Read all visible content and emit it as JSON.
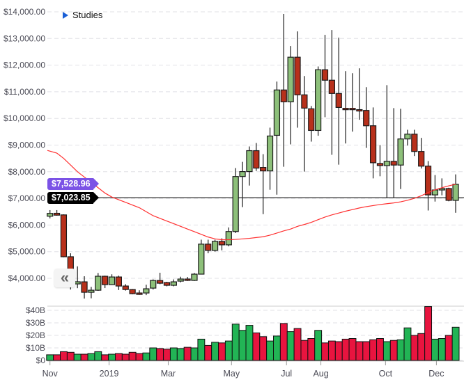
{
  "header": {
    "studies_label": "Studies"
  },
  "controls": {
    "collapse_icon": "double-chevron-left-icon"
  },
  "colors": {
    "up_candle": "#8dc07a",
    "down_candle": "#b8301b",
    "up_volume": "#22b455",
    "down_volume": "#e8143f",
    "moving_average": "#ff3030",
    "last_price_tag": "#7b52e6",
    "crosshair_tag": "#000000"
  },
  "price_tags": {
    "moving_average": "$7,528.96",
    "crosshair": "$7,023.85"
  },
  "chart_data": [
    {
      "type": "candlestick",
      "ylim": [
        4000,
        14000
      ],
      "ytick_labels": [
        "$14,000.00",
        "$13,000.00",
        "$12,000.00",
        "$11,000.00",
        "$10,000.00",
        "$9,000.00",
        "$8,000.00",
        "$7,000.00",
        "$6,000.00",
        "$5,000.00",
        "$4,000.00"
      ],
      "yticks": [
        14000,
        13000,
        12000,
        11000,
        10000,
        9000,
        8000,
        7000,
        6000,
        5000,
        4000
      ],
      "grid": true,
      "crosshair_value": 7023.85,
      "ohlc": [
        [
          6330,
          6560,
          6250,
          6435
        ],
        [
          6440,
          6560,
          6350,
          6370
        ],
        [
          6380,
          6400,
          4790,
          4810
        ],
        [
          4810,
          4940,
          3580,
          4290
        ],
        [
          3790,
          4450,
          3630,
          3870
        ],
        [
          3868,
          4078,
          3240,
          3476
        ],
        [
          3476,
          3680,
          3250,
          3554
        ],
        [
          3554,
          4200,
          3530,
          4078
        ],
        [
          4078,
          4100,
          3633,
          3764
        ],
        [
          3764,
          4150,
          3750,
          4050
        ],
        [
          4050,
          4100,
          3560,
          3711
        ],
        [
          3711,
          3780,
          3540,
          3580
        ],
        [
          3580,
          3600,
          3400,
          3423
        ],
        [
          3450,
          3550,
          3380,
          3397
        ],
        [
          3450,
          3760,
          3370,
          3607
        ],
        [
          3633,
          3960,
          3580,
          3921
        ],
        [
          3921,
          4210,
          3780,
          3816
        ],
        [
          3842,
          3870,
          3700,
          3738
        ],
        [
          3738,
          3960,
          3700,
          3868
        ],
        [
          3895,
          4060,
          3850,
          3973
        ],
        [
          3973,
          4050,
          3900,
          3921
        ],
        [
          3921,
          4200,
          3900,
          4157
        ],
        [
          4157,
          5450,
          4150,
          5283
        ],
        [
          5283,
          5450,
          4940,
          5047
        ],
        [
          5047,
          5450,
          5000,
          5387
        ],
        [
          5387,
          5500,
          5050,
          5256
        ],
        [
          5256,
          5910,
          5200,
          5756
        ],
        [
          5756,
          8136,
          5700,
          7820
        ],
        [
          7820,
          8371,
          6670,
          8005
        ],
        [
          8005,
          8948,
          7481,
          8790
        ],
        [
          8790,
          9078,
          8031,
          8136
        ],
        [
          8162,
          8660,
          6408,
          8031
        ],
        [
          8031,
          9654,
          7324,
          9340
        ],
        [
          9366,
          11382,
          7141,
          11068
        ],
        [
          11068,
          13921,
          8188,
          10623
        ],
        [
          10623,
          12717,
          9026,
          12298
        ],
        [
          12298,
          13267,
          9654,
          10885
        ],
        [
          10885,
          11591,
          8005,
          10387
        ],
        [
          10361,
          10466,
          9130,
          9550
        ],
        [
          9550,
          11950,
          9350,
          11827
        ],
        [
          11827,
          13136,
          10047,
          11434
        ],
        [
          11434,
          13319,
          8633,
          10937
        ],
        [
          10937,
          13031,
          8267,
          10413
        ],
        [
          10380,
          11775,
          9060,
          10330
        ],
        [
          10380,
          11696,
          9505,
          10330
        ],
        [
          10330,
          11880,
          9950,
          10280
        ],
        [
          10300,
          11173,
          8895,
          9725
        ],
        [
          9725,
          10413,
          7750,
          8337
        ],
        [
          8310,
          9000,
          7830,
          8230
        ],
        [
          8230,
          11250,
          7010,
          8390
        ],
        [
          8390,
          10387,
          7010,
          8250
        ],
        [
          8250,
          10360,
          7350,
          9230
        ],
        [
          9230,
          9575,
          8980,
          9410
        ],
        [
          9410,
          9575,
          8590,
          8760
        ],
        [
          8760,
          9270,
          8120,
          8210
        ],
        [
          8210,
          8400,
          6545,
          7130
        ],
        [
          7130,
          7875,
          6880,
          7315
        ],
        [
          7315,
          7750,
          7115,
          7370
        ],
        [
          7370,
          7400,
          6890,
          6925
        ],
        [
          6925,
          7900,
          6460,
          7530
        ]
      ],
      "moving_average": [
        8800,
        8700,
        8500,
        8250,
        8000,
        7800,
        7600,
        7400,
        7200,
        7050,
        6950,
        6850,
        6750,
        6650,
        6500,
        6350,
        6250,
        6150,
        6050,
        5950,
        5850,
        5750,
        5650,
        5550,
        5480,
        5450,
        5450,
        5460,
        5480,
        5500,
        5530,
        5560,
        5620,
        5700,
        5780,
        5850,
        5950,
        6020,
        6100,
        6200,
        6300,
        6380,
        6450,
        6520,
        6580,
        6640,
        6690,
        6730,
        6770,
        6800,
        6830,
        6870,
        6930,
        7000,
        7100,
        7220,
        7320,
        7400,
        7470,
        7529
      ]
    },
    {
      "type": "bar",
      "ylim": [
        0,
        40
      ],
      "yticks": [
        0,
        10,
        20,
        30,
        40
      ],
      "ytick_labels": [
        "$0",
        "$10B",
        "$20B",
        "$30B",
        "$40B"
      ],
      "grid": true,
      "values": [
        4.5,
        4.5,
        7,
        6.5,
        5,
        5,
        5.5,
        7,
        4.5,
        5,
        5.5,
        5,
        6.5,
        5.5,
        6,
        10,
        9.5,
        9,
        10,
        9.5,
        10.5,
        10,
        17,
        12,
        14.5,
        14,
        15.5,
        29,
        24,
        28,
        22,
        19,
        15.5,
        19.5,
        29.5,
        23,
        25.5,
        16,
        17.5,
        24,
        14,
        15.5,
        15,
        17,
        17.5,
        15,
        15,
        16.5,
        17.5,
        15,
        16,
        16.5,
        26,
        20,
        21.5,
        43,
        17,
        17.5,
        20,
        26.5
      ],
      "xtick_labels": [
        {
          "label": "Nov",
          "index": 0
        },
        {
          "label": "2019",
          "index": 8.6
        },
        {
          "label": "Mar",
          "index": 17.2
        },
        {
          "label": "May",
          "index": 26.4
        },
        {
          "label": "Jul",
          "index": 34.4
        },
        {
          "label": "Aug",
          "index": 39.4
        },
        {
          "label": "Oct",
          "index": 48.8
        },
        {
          "label": "Dec",
          "index": 56.2
        }
      ]
    }
  ]
}
